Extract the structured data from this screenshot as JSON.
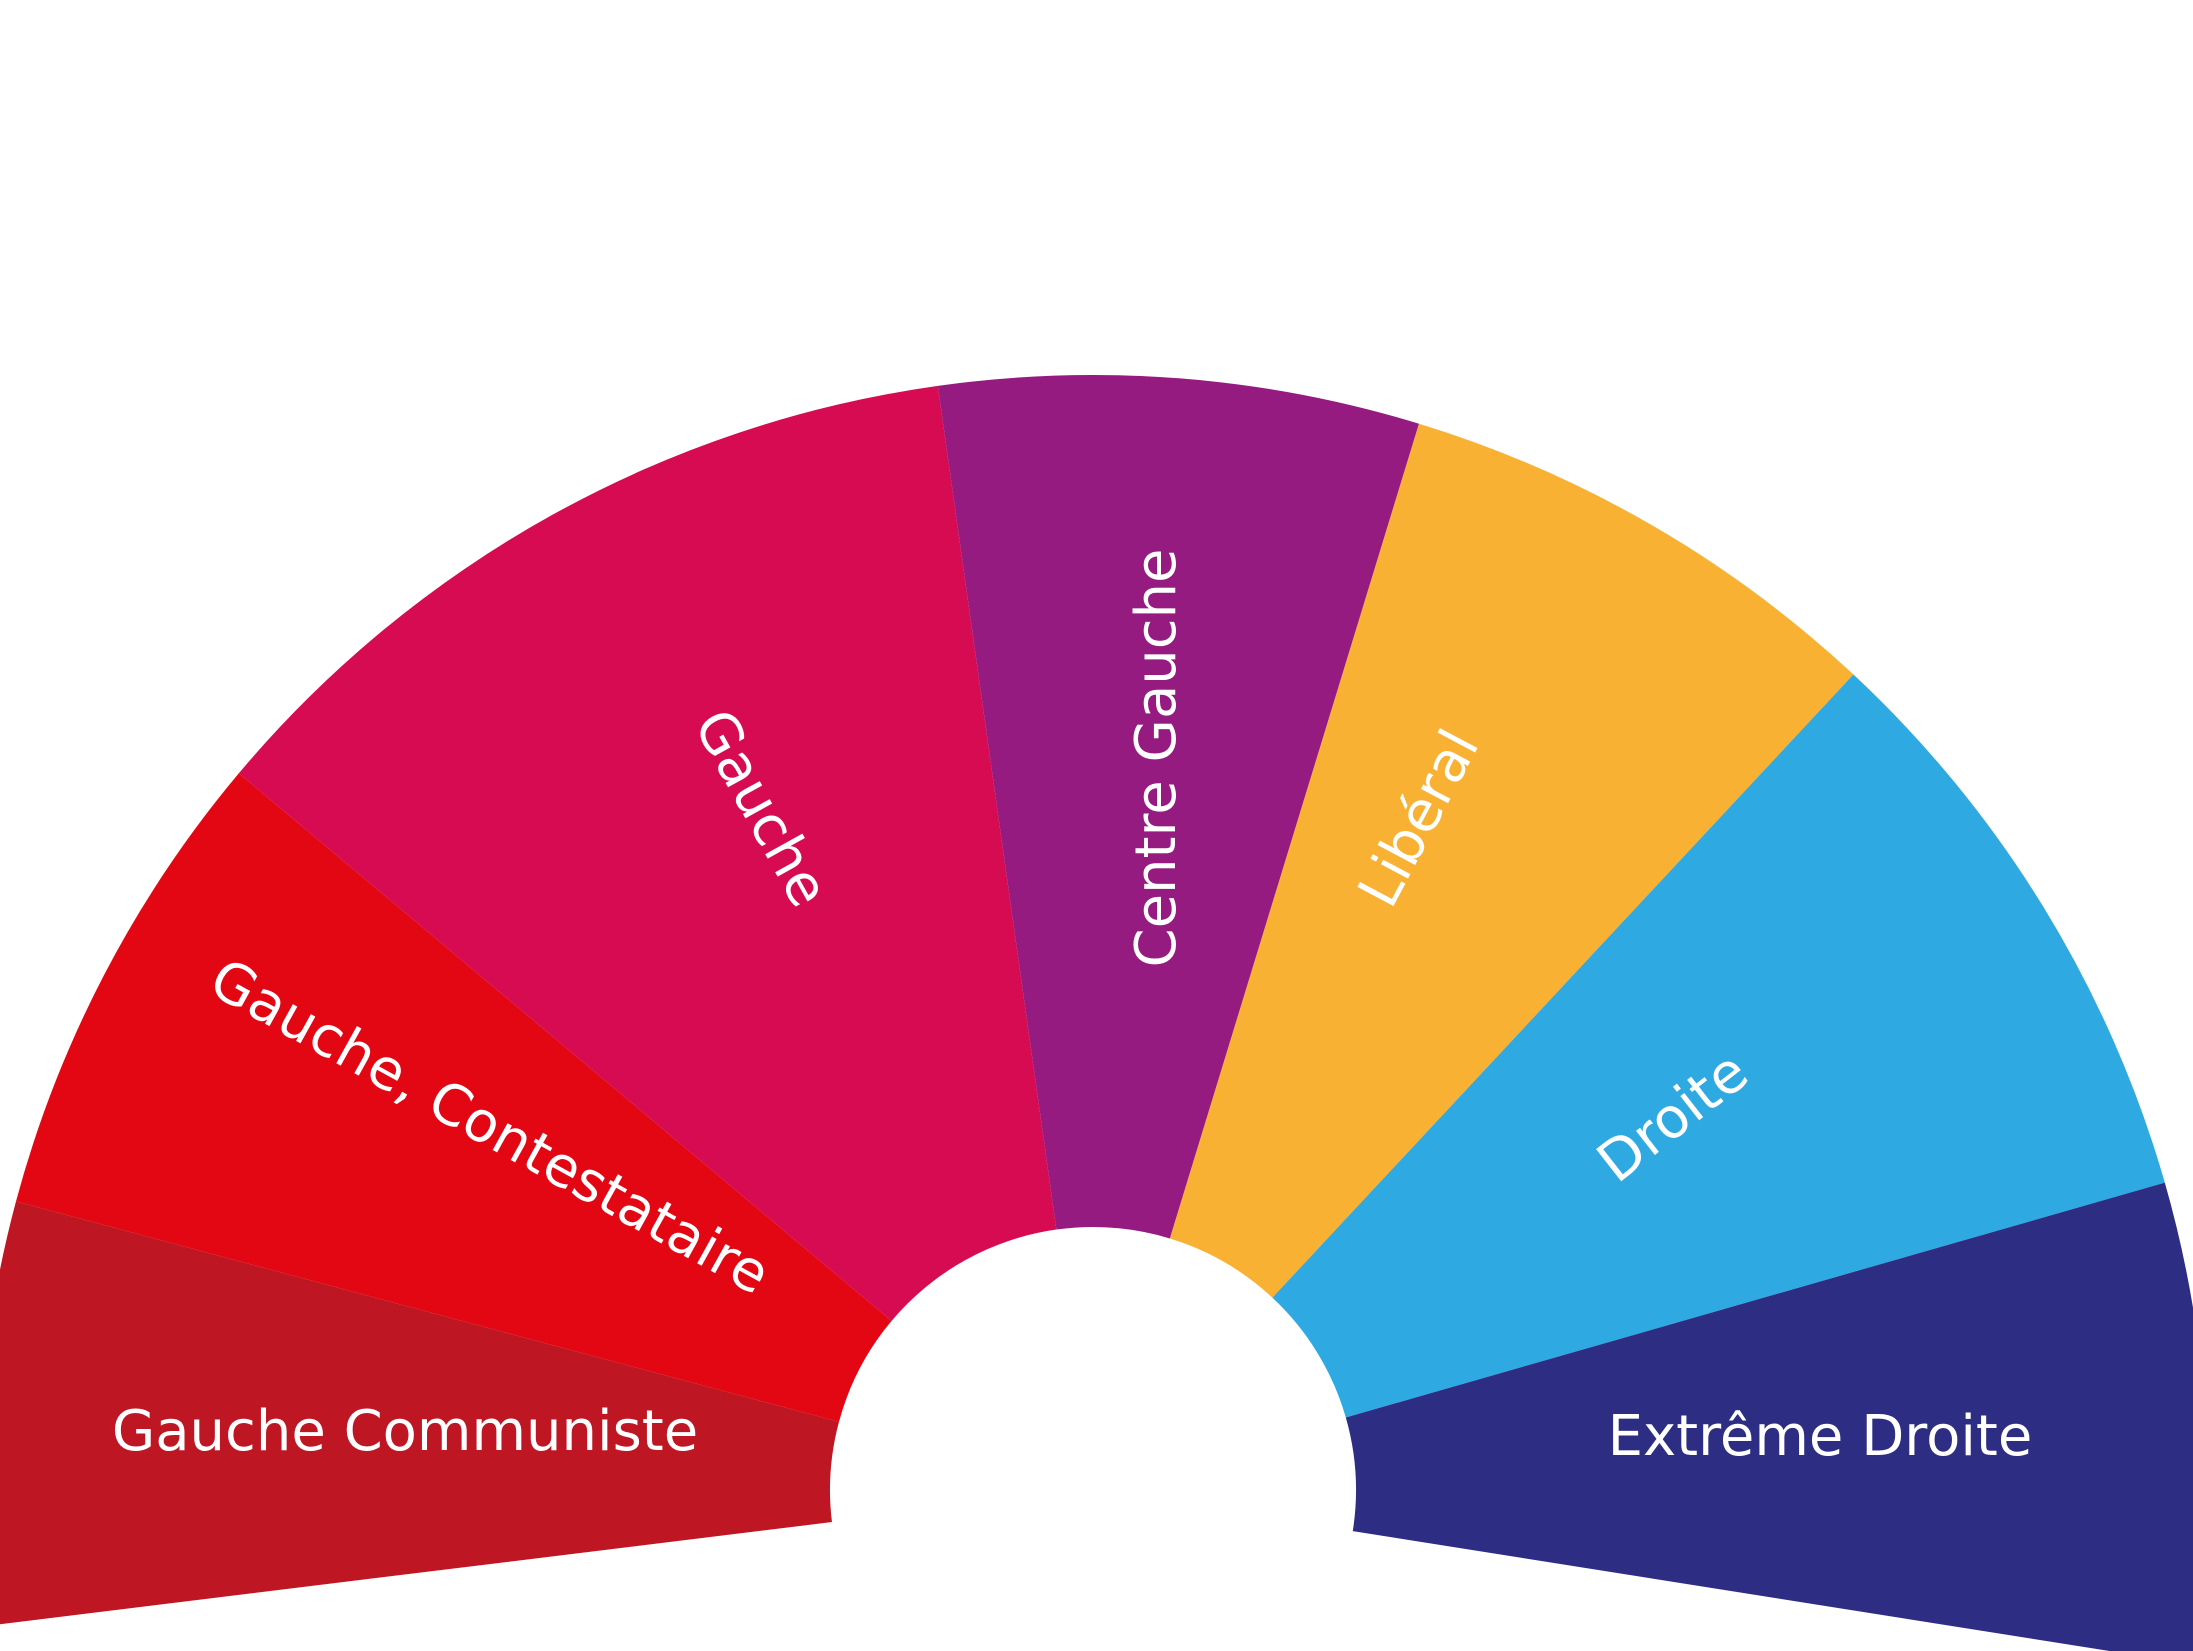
{
  "chart_data": {
    "type": "pie",
    "layout": "hemicycle",
    "segments": [
      {
        "name": "Gauche Communiste",
        "color": "#be1622",
        "start_deg": -97,
        "end_deg": -75
      },
      {
        "name": "Gauche, Contestataire",
        "color": "#e30613",
        "start_deg": -75,
        "end_deg": -50
      },
      {
        "name": "Gauche",
        "color": "#d60b52",
        "start_deg": -50,
        "end_deg": -8
      },
      {
        "name": "Centre Gauche",
        "color": "#951b81",
        "start_deg": -8,
        "end_deg": 17
      },
      {
        "name": "Libéral",
        "color": "#f8b133",
        "start_deg": 17,
        "end_deg": 43
      },
      {
        "name": "Droite",
        "color": "#2ea9e1",
        "start_deg": 43,
        "end_deg": 74
      },
      {
        "name": "Extrême Droite",
        "color": "#2d2e83",
        "start_deg": 74,
        "end_deg": 99
      }
    ]
  }
}
